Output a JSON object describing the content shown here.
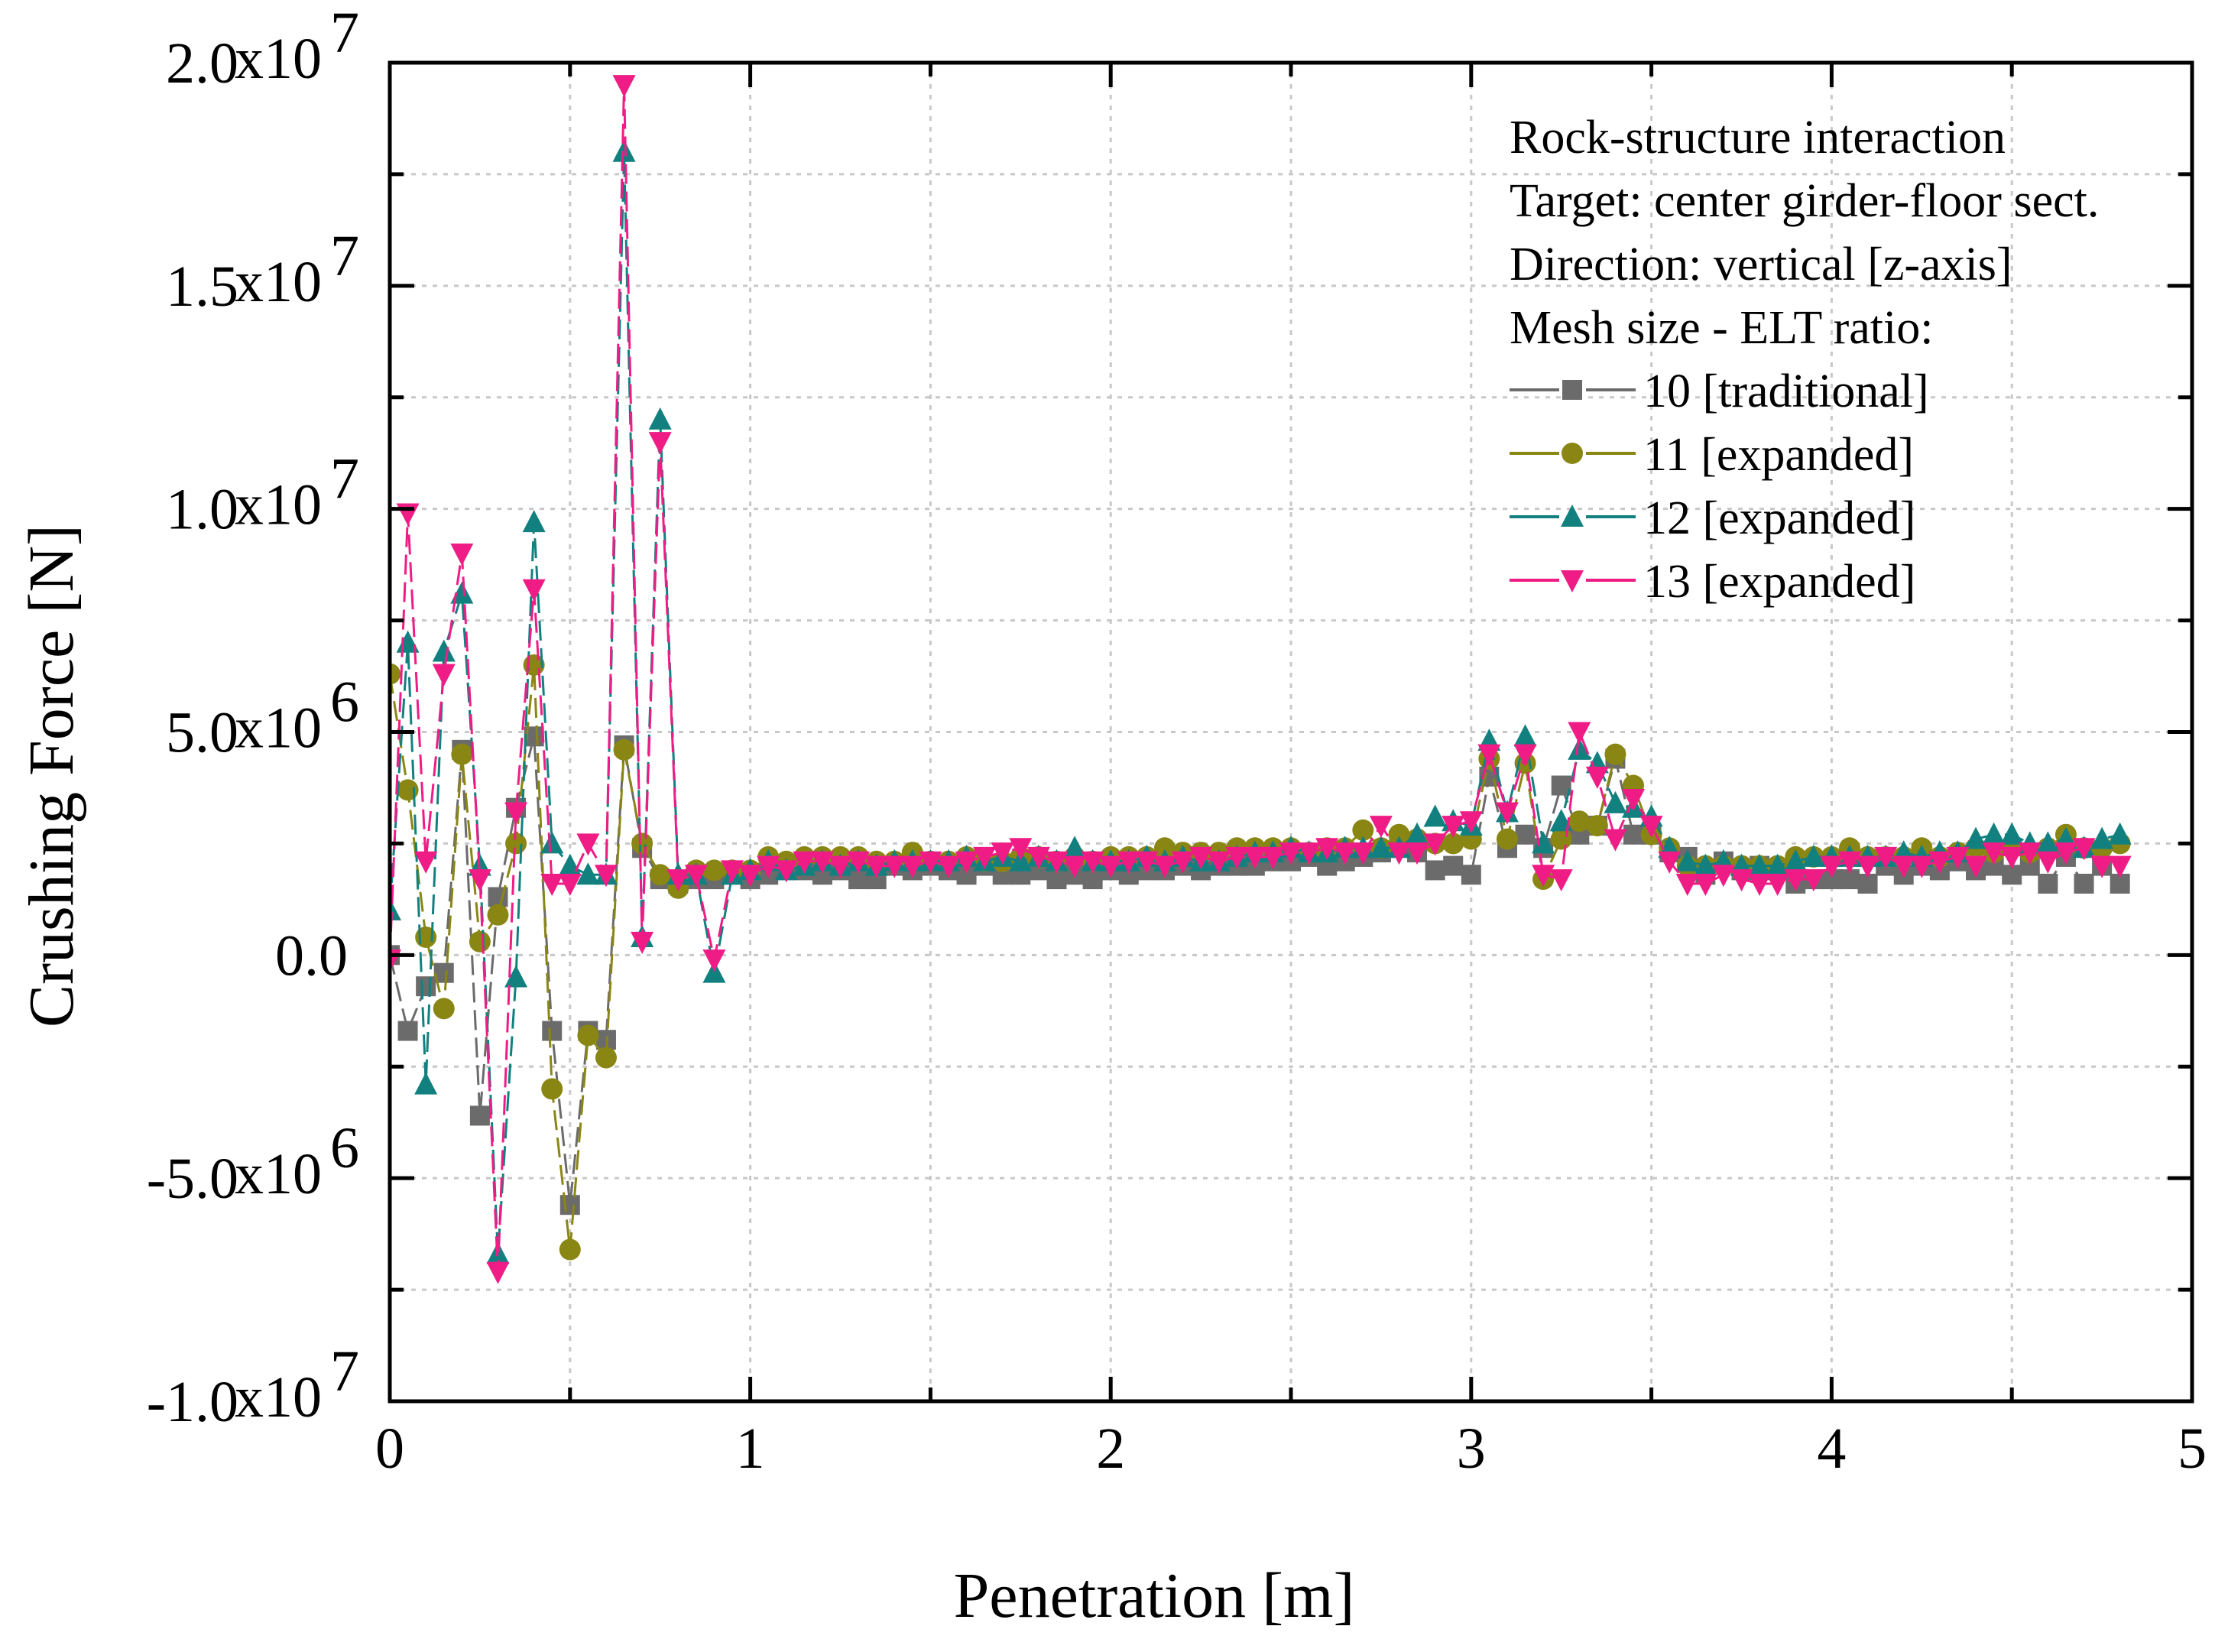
{
  "chart_data": {
    "type": "line",
    "xlabel": "Penetration [m]",
    "ylabel": "Crushing Force [N]",
    "xlim": [
      0,
      5
    ],
    "ylim": [
      -10000000,
      20000000
    ],
    "x_ticks": [
      {
        "value": 0,
        "label": "0"
      },
      {
        "value": 1,
        "label": "1"
      },
      {
        "value": 2,
        "label": "2"
      },
      {
        "value": 3,
        "label": "3"
      },
      {
        "value": 4,
        "label": "4"
      },
      {
        "value": 5,
        "label": "5"
      }
    ],
    "y_ticks": [
      {
        "value": 20000000,
        "mantissa": "2.0",
        "base": "x10",
        "exp": "7"
      },
      {
        "value": 15000000,
        "mantissa": "1.5",
        "base": "x10",
        "exp": "7"
      },
      {
        "value": 10000000,
        "mantissa": "1.0",
        "base": "x10",
        "exp": "7"
      },
      {
        "value": 5000000,
        "mantissa": "5.0",
        "base": "x10",
        "exp": "6"
      },
      {
        "value": 0,
        "mantissa": "0.0",
        "base": "",
        "exp": ""
      },
      {
        "value": -5000000,
        "mantissa": "-5.0",
        "base": "x10",
        "exp": "6"
      },
      {
        "value": -10000000,
        "mantissa": "-1.0",
        "base": "x10",
        "exp": "7"
      }
    ],
    "grid": true,
    "legend_position": "top-right",
    "annotation_lines": [
      "Rock-structure interaction",
      "Target: center girder-floor sect.",
      "Direction: vertical [z-axis]",
      "Mesh size - ELT ratio:"
    ],
    "series": [
      {
        "name": "10 [traditional]",
        "color": "#6b6b6b",
        "marker": "square",
        "x": [
          0.0,
          0.05,
          0.1,
          0.15,
          0.2,
          0.25,
          0.3,
          0.35,
          0.4,
          0.45,
          0.5,
          0.55,
          0.6,
          0.65,
          0.7,
          0.75,
          0.8,
          0.85,
          0.9,
          0.95,
          1.0,
          1.05,
          1.1,
          1.15,
          1.2,
          1.25,
          1.3,
          1.35,
          1.4,
          1.45,
          1.5,
          1.55,
          1.6,
          1.65,
          1.7,
          1.75,
          1.8,
          1.85,
          1.9,
          1.95,
          2.0,
          2.05,
          2.1,
          2.15,
          2.2,
          2.25,
          2.3,
          2.35,
          2.4,
          2.45,
          2.5,
          2.55,
          2.6,
          2.65,
          2.7,
          2.75,
          2.8,
          2.85,
          2.9,
          2.95,
          3.0,
          3.05,
          3.1,
          3.15,
          3.2,
          3.25,
          3.3,
          3.35,
          3.4,
          3.45,
          3.5,
          3.55,
          3.6,
          3.65,
          3.7,
          3.75,
          3.8,
          3.85,
          3.9,
          3.95,
          4.0,
          4.05,
          4.1,
          4.15,
          4.2,
          4.25,
          4.3,
          4.35,
          4.4,
          4.45,
          4.5,
          4.55,
          4.6,
          4.65,
          4.7,
          4.75,
          4.8
        ],
        "y": [
          0,
          -1700000,
          -700000,
          -400000,
          4600000,
          -3600000,
          1300000,
          3300000,
          4900000,
          -1700000,
          -5600000,
          -1700000,
          -1900000,
          4700000,
          2400000,
          1700000,
          1600000,
          1700000,
          1700000,
          1800000,
          1700000,
          1800000,
          1900000,
          1900000,
          1800000,
          1900000,
          1700000,
          1700000,
          2000000,
          1900000,
          2000000,
          1900000,
          1800000,
          2000000,
          1800000,
          1800000,
          1900000,
          1700000,
          1800000,
          1700000,
          1900000,
          1800000,
          1900000,
          1900000,
          2000000,
          1900000,
          2000000,
          2000000,
          2000000,
          2100000,
          2100000,
          2200000,
          2000000,
          2100000,
          2200000,
          2300000,
          2400000,
          2300000,
          1900000,
          2000000,
          1800000,
          4000000,
          2400000,
          2700000,
          2400000,
          3800000,
          2700000,
          2900000,
          4400000,
          2700000,
          2700000,
          2300000,
          2200000,
          1800000,
          2100000,
          1900000,
          2000000,
          1900000,
          1600000,
          1700000,
          1700000,
          1700000,
          1600000,
          2000000,
          1800000,
          2000000,
          1900000,
          2100000,
          1900000,
          2000000,
          1800000,
          2000000,
          1600000,
          2200000,
          1600000,
          2000000,
          1600000
        ]
      },
      {
        "name": "11 [expanded]",
        "color": "#8a8614",
        "marker": "circle",
        "x": [
          0.0,
          0.05,
          0.1,
          0.15,
          0.2,
          0.25,
          0.3,
          0.35,
          0.4,
          0.45,
          0.5,
          0.55,
          0.6,
          0.65,
          0.7,
          0.75,
          0.8,
          0.85,
          0.9,
          0.95,
          1.0,
          1.05,
          1.1,
          1.15,
          1.2,
          1.25,
          1.3,
          1.35,
          1.4,
          1.45,
          1.5,
          1.55,
          1.6,
          1.65,
          1.7,
          1.75,
          1.8,
          1.85,
          1.9,
          1.95,
          2.0,
          2.05,
          2.1,
          2.15,
          2.2,
          2.25,
          2.3,
          2.35,
          2.4,
          2.45,
          2.5,
          2.55,
          2.6,
          2.65,
          2.7,
          2.75,
          2.8,
          2.85,
          2.9,
          2.95,
          3.0,
          3.05,
          3.1,
          3.15,
          3.2,
          3.25,
          3.3,
          3.35,
          3.4,
          3.45,
          3.5,
          3.55,
          3.6,
          3.65,
          3.7,
          3.75,
          3.8,
          3.85,
          3.9,
          3.95,
          4.0,
          4.05,
          4.1,
          4.15,
          4.2,
          4.25,
          4.3,
          4.35,
          4.4,
          4.45,
          4.5,
          4.55,
          4.6,
          4.65,
          4.7,
          4.75,
          4.8
        ],
        "y": [
          6300000,
          3700000,
          400000,
          -1200000,
          4500000,
          300000,
          900000,
          2500000,
          6500000,
          -3000000,
          -6600000,
          -1800000,
          -2300000,
          4600000,
          2500000,
          1800000,
          1500000,
          1900000,
          1900000,
          1900000,
          1900000,
          2200000,
          2100000,
          2200000,
          2200000,
          2200000,
          2200000,
          2100000,
          2100000,
          2300000,
          2100000,
          2100000,
          2200000,
          2100000,
          2100000,
          2200000,
          2200000,
          2100000,
          2200000,
          2100000,
          2200000,
          2200000,
          2200000,
          2400000,
          2300000,
          2300000,
          2300000,
          2400000,
          2400000,
          2400000,
          2400000,
          2300000,
          2400000,
          2400000,
          2800000,
          2400000,
          2700000,
          2600000,
          2500000,
          2500000,
          2600000,
          4400000,
          2600000,
          4300000,
          1700000,
          2600000,
          3000000,
          2900000,
          4500000,
          3800000,
          2700000,
          2400000,
          2000000,
          2000000,
          2000000,
          2000000,
          2000000,
          2000000,
          2200000,
          2200000,
          2200000,
          2400000,
          2200000,
          2200000,
          2200000,
          2400000,
          2200000,
          2300000,
          2400000,
          2300000,
          2400000,
          2300000,
          2400000,
          2700000,
          2400000,
          2400000,
          2500000
        ]
      },
      {
        "name": "12 [expanded]",
        "color": "#138080",
        "marker": "triangle-up",
        "x": [
          0.0,
          0.05,
          0.1,
          0.15,
          0.2,
          0.25,
          0.3,
          0.35,
          0.4,
          0.45,
          0.5,
          0.55,
          0.6,
          0.65,
          0.7,
          0.75,
          0.8,
          0.85,
          0.9,
          0.95,
          1.0,
          1.05,
          1.1,
          1.15,
          1.2,
          1.25,
          1.3,
          1.35,
          1.4,
          1.45,
          1.5,
          1.55,
          1.6,
          1.65,
          1.7,
          1.75,
          1.8,
          1.85,
          1.9,
          1.95,
          2.0,
          2.05,
          2.1,
          2.15,
          2.2,
          2.25,
          2.3,
          2.35,
          2.4,
          2.45,
          2.5,
          2.55,
          2.6,
          2.65,
          2.7,
          2.75,
          2.8,
          2.85,
          2.9,
          2.95,
          3.0,
          3.05,
          3.1,
          3.15,
          3.2,
          3.25,
          3.3,
          3.35,
          3.4,
          3.45,
          3.5,
          3.55,
          3.6,
          3.65,
          3.7,
          3.75,
          3.8,
          3.85,
          3.9,
          3.95,
          4.0,
          4.05,
          4.1,
          4.15,
          4.2,
          4.25,
          4.3,
          4.35,
          4.4,
          4.45,
          4.5,
          4.55,
          4.6,
          4.65,
          4.7,
          4.75,
          4.8
        ],
        "y": [
          1000000,
          7000000,
          -2900000,
          6800000,
          8100000,
          2000000,
          -6700000,
          -500000,
          9700000,
          2500000,
          2000000,
          1800000,
          1800000,
          18000000,
          400000,
          12000000,
          1800000,
          1800000,
          -400000,
          1800000,
          1900000,
          2100000,
          1900000,
          2000000,
          2100000,
          2000000,
          2100000,
          2000000,
          2100000,
          2100000,
          2100000,
          2100000,
          2200000,
          2100000,
          2200000,
          2100000,
          2200000,
          2100000,
          2400000,
          2100000,
          2100000,
          2100000,
          2200000,
          2100000,
          2200000,
          2100000,
          2100000,
          2200000,
          2300000,
          2300000,
          2400000,
          2300000,
          2300000,
          2400000,
          2400000,
          2400000,
          2400000,
          2700000,
          3100000,
          3000000,
          2900000,
          4800000,
          3200000,
          4900000,
          2500000,
          3000000,
          4600000,
          4300000,
          3400000,
          3300000,
          3100000,
          2400000,
          2100000,
          2000000,
          2100000,
          2000000,
          2000000,
          2000000,
          2100000,
          2200000,
          2200000,
          2200000,
          2200000,
          2200000,
          2300000,
          2200000,
          2300000,
          2300000,
          2600000,
          2700000,
          2700000,
          2500000,
          2500000,
          2600000,
          2400000,
          2600000,
          2700000
        ]
      },
      {
        "name": "13 [expanded]",
        "color": "#f01c86",
        "marker": "triangle-down",
        "x": [
          0.0,
          0.05,
          0.1,
          0.15,
          0.2,
          0.25,
          0.3,
          0.35,
          0.4,
          0.45,
          0.5,
          0.55,
          0.6,
          0.65,
          0.7,
          0.75,
          0.8,
          0.85,
          0.9,
          0.95,
          1.0,
          1.05,
          1.1,
          1.15,
          1.2,
          1.25,
          1.3,
          1.35,
          1.4,
          1.45,
          1.5,
          1.55,
          1.6,
          1.65,
          1.7,
          1.75,
          1.8,
          1.85,
          1.9,
          1.95,
          2.0,
          2.05,
          2.1,
          2.15,
          2.2,
          2.25,
          2.3,
          2.35,
          2.4,
          2.45,
          2.5,
          2.55,
          2.6,
          2.65,
          2.7,
          2.75,
          2.8,
          2.85,
          2.9,
          2.95,
          3.0,
          3.05,
          3.1,
          3.15,
          3.2,
          3.25,
          3.3,
          3.35,
          3.4,
          3.45,
          3.5,
          3.55,
          3.6,
          3.65,
          3.7,
          3.75,
          3.8,
          3.85,
          3.9,
          3.95,
          4.0,
          4.05,
          4.1,
          4.15,
          4.2,
          4.25,
          4.3,
          4.35,
          4.4,
          4.45,
          4.5,
          4.55,
          4.6,
          4.65,
          4.7,
          4.75,
          4.8
        ],
        "y": [
          -100000,
          9900000,
          2100000,
          6300000,
          9000000,
          1700000,
          -7100000,
          3200000,
          8200000,
          1600000,
          1600000,
          2500000,
          1800000,
          19500000,
          300000,
          11500000,
          1700000,
          1800000,
          -100000,
          1900000,
          1800000,
          2000000,
          1900000,
          2100000,
          2100000,
          2000000,
          2100000,
          2000000,
          2000000,
          2000000,
          2100000,
          2000000,
          2100000,
          2200000,
          2300000,
          2400000,
          2200000,
          2100000,
          2000000,
          2100000,
          2000000,
          2100000,
          2100000,
          2000000,
          2100000,
          2200000,
          2100000,
          2200000,
          2200000,
          2200000,
          2300000,
          2300000,
          2400000,
          2300000,
          2300000,
          2900000,
          2300000,
          2300000,
          2500000,
          2900000,
          3000000,
          4500000,
          3200000,
          4500000,
          1800000,
          1700000,
          5000000,
          4000000,
          2600000,
          3500000,
          2900000,
          2100000,
          1600000,
          1600000,
          1800000,
          1700000,
          1600000,
          1600000,
          1700000,
          1700000,
          2000000,
          2100000,
          2000000,
          2200000,
          2000000,
          2000000,
          2100000,
          2200000,
          2000000,
          2300000,
          2200000,
          2300000,
          2100000,
          2300000,
          2400000,
          2000000,
          2000000
        ]
      }
    ]
  }
}
